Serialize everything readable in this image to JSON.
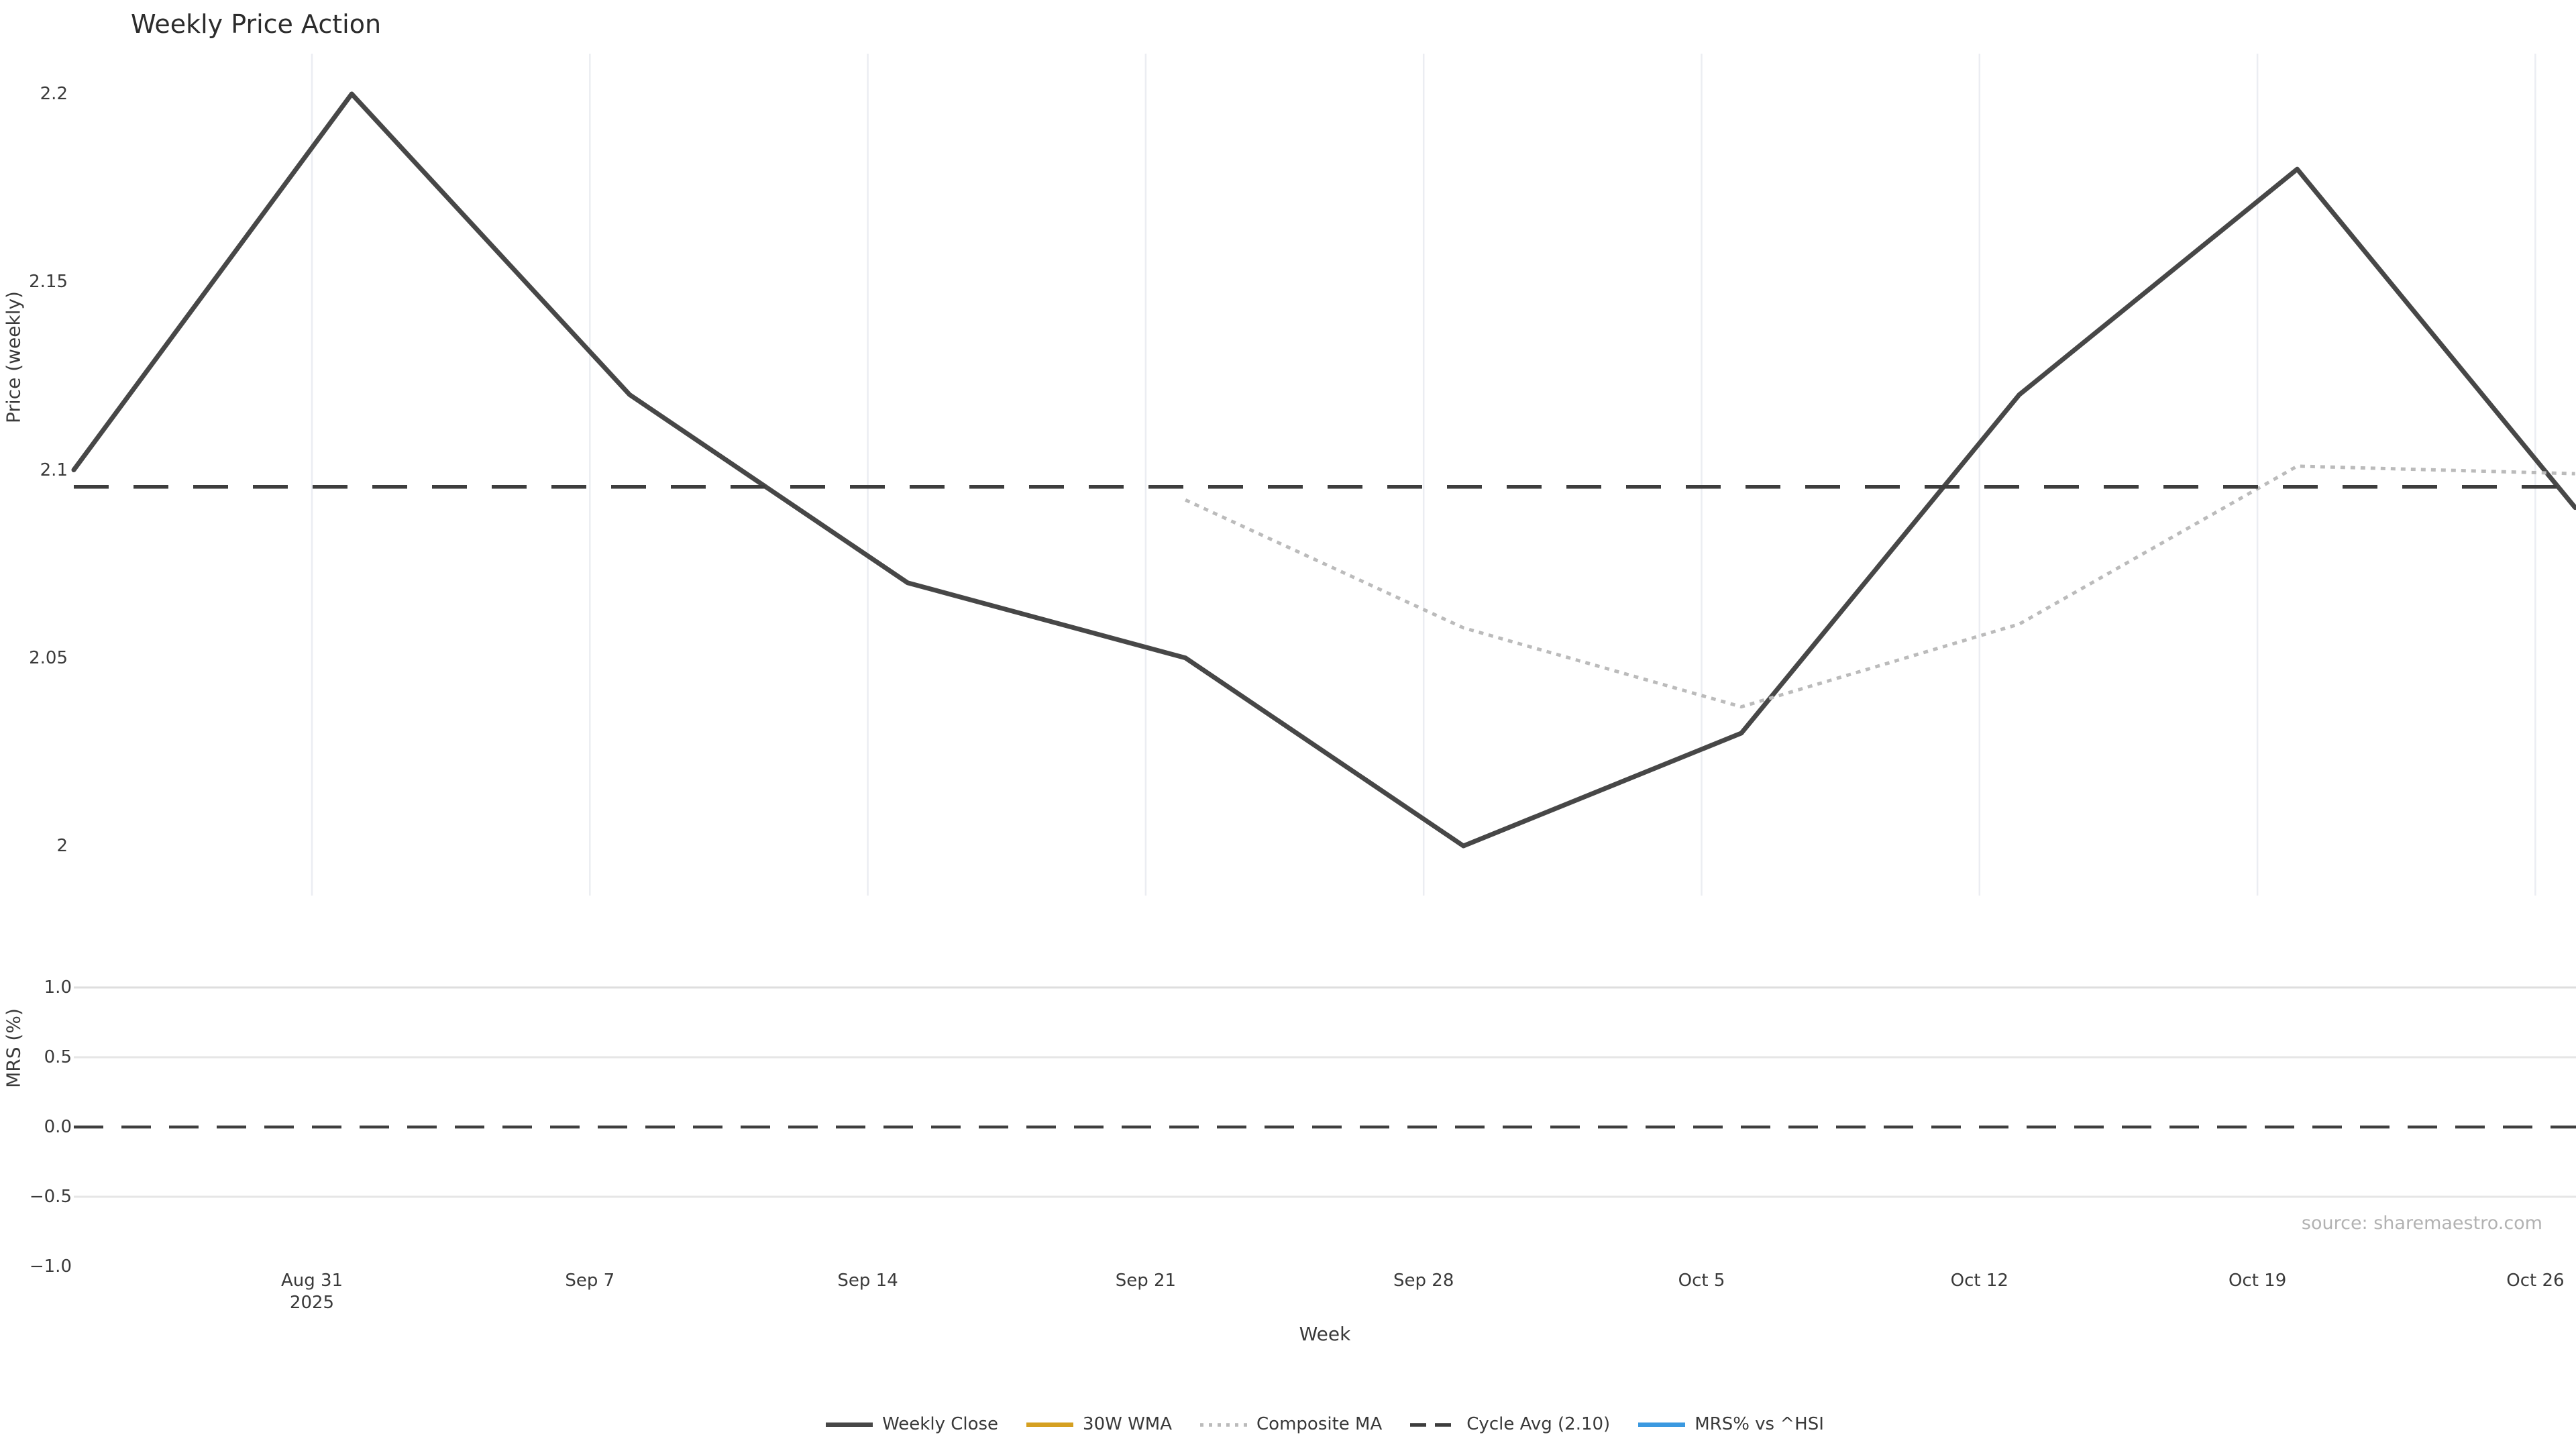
{
  "title": "Weekly Price Action",
  "source_note": "source: sharemaestro.com",
  "axes": {
    "x_label": "Week",
    "price_axis_label": "Price (weekly)",
    "mrs_axis_label": "MRS (%)",
    "x_ticks": [
      {
        "label": "Aug 31",
        "sublabel": "2025"
      },
      {
        "label": "Sep 7"
      },
      {
        "label": "Sep 14"
      },
      {
        "label": "Sep 21"
      },
      {
        "label": "Sep 28"
      },
      {
        "label": "Oct 5"
      },
      {
        "label": "Oct 12"
      },
      {
        "label": "Oct 19"
      },
      {
        "label": "Oct 26"
      }
    ],
    "price_ticks": [
      {
        "label": "2.2",
        "value": 2.2
      },
      {
        "label": "2.15",
        "value": 2.15
      },
      {
        "label": "2.1",
        "value": 2.1
      },
      {
        "label": "2.05",
        "value": 2.05
      },
      {
        "label": "2",
        "value": 2.0
      }
    ],
    "mrs_ticks": [
      {
        "label": "1.0",
        "value": 1.0
      },
      {
        "label": "0.5",
        "value": 0.5
      },
      {
        "label": "0.0",
        "value": 0.0
      },
      {
        "label": "−0.5",
        "value": -0.5
      },
      {
        "label": "−1.0",
        "value": -1.0
      }
    ]
  },
  "chart_data": {
    "type": "line",
    "x": [
      "Aug 25",
      "Sep 1",
      "Sep 8",
      "Sep 15",
      "Sep 22",
      "Sep 29",
      "Oct 6",
      "Oct 13",
      "Oct 20",
      "Oct 27"
    ],
    "price_ylim": [
      1.987,
      2.211
    ],
    "mrs_ylim": [
      -1.03,
      1.15
    ],
    "grid": "vertical-top-panel, horizontal-bottom-panel",
    "legend_position": "bottom-center",
    "series": [
      {
        "name": "Weekly Close",
        "panel": "price",
        "style": "solid",
        "color": "#474747",
        "values": [
          2.1,
          2.2,
          2.12,
          2.07,
          2.05,
          2.0,
          2.03,
          2.12,
          2.18,
          2.09
        ]
      },
      {
        "name": "30W WMA",
        "panel": "price",
        "style": "solid",
        "color": "#d5a021",
        "values": [
          null,
          null,
          null,
          null,
          null,
          null,
          null,
          null,
          null,
          null
        ]
      },
      {
        "name": "Composite MA",
        "panel": "price",
        "style": "dotted",
        "color": "#bbbbbb",
        "values": [
          null,
          null,
          null,
          null,
          2.092,
          2.058,
          2.037,
          2.059,
          2.101,
          2.099
        ]
      },
      {
        "name": "Cycle Avg (2.10)",
        "panel": "price",
        "style": "dashed",
        "color": "#3d3d3d",
        "type": "hline",
        "value": 2.0955
      },
      {
        "name": "MRS% vs ^HSI",
        "panel": "mrs",
        "style": "solid",
        "color": "#3b99e0",
        "values": [
          null,
          null,
          null,
          null,
          null,
          null,
          null,
          null,
          null,
          null
        ]
      }
    ],
    "mrs_zero_line": {
      "style": "dashed",
      "color": "#3f3f3f",
      "value": 0.0
    }
  }
}
